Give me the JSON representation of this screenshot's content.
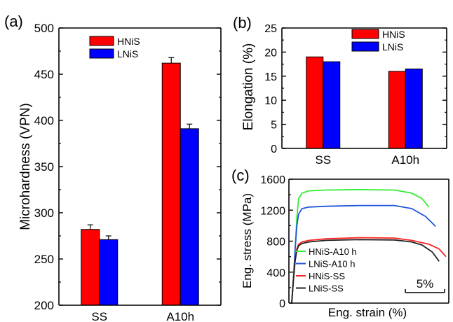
{
  "chart_data": [
    {
      "panel_label": "(a)",
      "type": "bar",
      "categories": [
        "SS",
        "A10h"
      ],
      "series": [
        {
          "name": "HNiS",
          "values": [
            282,
            462
          ],
          "errors": [
            5,
            6
          ],
          "color": "#ff0000"
        },
        {
          "name": "LNiS",
          "values": [
            271,
            391
          ],
          "errors": [
            4,
            5
          ],
          "color": "#0000ff"
        }
      ],
      "ylabel": "Microhardness (VPN)",
      "xlabel": "",
      "ylim": [
        200,
        500
      ],
      "yticks": [
        "200",
        "250",
        "300",
        "350",
        "400",
        "450",
        "500"
      ],
      "legend_position": "top-left",
      "grid": false
    },
    {
      "panel_label": "(b)",
      "type": "bar",
      "categories": [
        "SS",
        "A10h"
      ],
      "series": [
        {
          "name": "HNiS",
          "values": [
            19,
            16
          ],
          "color": "#ff0000"
        },
        {
          "name": "LNiS",
          "values": [
            18,
            16.5
          ],
          "color": "#0000ff"
        }
      ],
      "ylabel": "Elongation (%)",
      "xlabel": "",
      "ylim": [
        0,
        25
      ],
      "yticks": [
        "0",
        "5",
        "10",
        "15",
        "20",
        "25"
      ],
      "legend_position": "top-right",
      "grid": false
    },
    {
      "panel_label": "(c)",
      "type": "line",
      "xlabel": "Eng. strain (%)",
      "ylabel": "Eng. stress (MPa)",
      "ylim": [
        0,
        1600
      ],
      "yticks": [
        "0",
        "400",
        "800",
        "1200",
        "1600"
      ],
      "xlim": [
        0,
        45
      ],
      "scale_bar_label": "5%",
      "legend_position": "bottom-left",
      "grid": false,
      "series": [
        {
          "name": "HNiS-A10 h",
          "color": "#33ee33",
          "x": [
            0,
            0.5,
            1.0,
            1.5,
            2.0,
            3,
            5,
            10,
            20,
            30,
            35,
            38,
            40
          ],
          "y": [
            0,
            300,
            700,
            1100,
            1350,
            1420,
            1450,
            1460,
            1465,
            1460,
            1420,
            1350,
            1240
          ]
        },
        {
          "name": "LNiS-A10 h",
          "color": "#2255dd",
          "x": [
            0,
            0.5,
            1.0,
            1.5,
            2.0,
            3,
            5,
            10,
            20,
            30,
            35,
            39,
            42
          ],
          "y": [
            0,
            300,
            700,
            1000,
            1150,
            1220,
            1240,
            1250,
            1260,
            1260,
            1220,
            1120,
            990
          ]
        },
        {
          "name": "HNiS-SS",
          "color": "#ff2222",
          "x": [
            0,
            0.5,
            1.0,
            1.5,
            2.0,
            3,
            5,
            10,
            20,
            30,
            35,
            40,
            43,
            45
          ],
          "y": [
            0,
            300,
            550,
            700,
            760,
            790,
            810,
            830,
            845,
            840,
            810,
            760,
            700,
            600
          ]
        },
        {
          "name": "LNiS-SS",
          "color": "#222222",
          "x": [
            0,
            0.5,
            1.0,
            1.5,
            2.0,
            3,
            5,
            10,
            20,
            30,
            35,
            38,
            41,
            43
          ],
          "y": [
            0,
            300,
            550,
            680,
            740,
            770,
            790,
            810,
            820,
            815,
            790,
            750,
            660,
            540
          ]
        }
      ]
    }
  ]
}
